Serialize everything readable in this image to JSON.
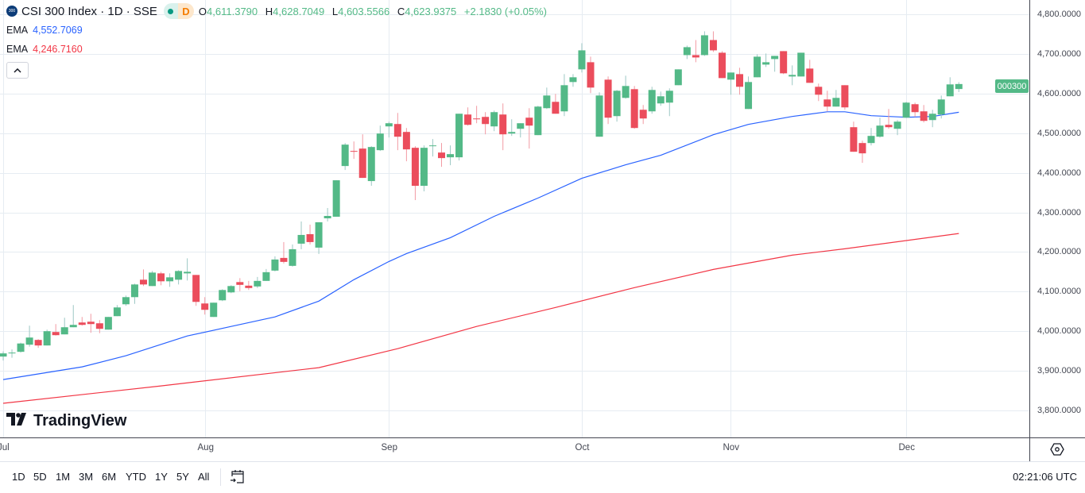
{
  "header": {
    "logo_text": "300",
    "title": "CSI 300 Index · 1D · SSE",
    "pill_letter": "D",
    "ohlc": {
      "o_label": "O",
      "o": "4,611.3790",
      "h_label": "H",
      "h": "4,628.7049",
      "l_label": "L",
      "l": "4,603.5566",
      "c_label": "C",
      "c": "4,623.9375",
      "change": "+2.1830 (+0.05%)"
    },
    "ema1": {
      "label": "EMA",
      "value": "4,552.7069",
      "color": "#2962ff"
    },
    "ema2": {
      "label": "EMA",
      "value": "4,246.7160",
      "color": "#f23645"
    },
    "collapse_icon": "chevron-up-icon"
  },
  "symbol_tag": "000300",
  "brand": "TradingView",
  "colors": {
    "up": "#53b987",
    "down": "#eb4d5c",
    "up_wick": "#9cc8c4",
    "down_wick": "#f29aa3",
    "grid": "#e6ecf2"
  },
  "bottom_bar": {
    "ranges": [
      "1D",
      "5D",
      "1M",
      "3M",
      "6M",
      "YTD",
      "1Y",
      "5Y",
      "All"
    ],
    "calendar_icon": "calendar-goto-icon",
    "clock": "02:21:06 UTC",
    "settings_icon": "settings-icon"
  },
  "chart_data": {
    "type": "candlestick",
    "ylim": [
      3770,
      4830
    ],
    "grid": true,
    "y_ticks": [
      "4,800.0000",
      "4,700.0000",
      "4,600.0000",
      "4,500.0000",
      "4,400.0000",
      "4,300.0000",
      "4,200.0000",
      "4,100.0000",
      "4,000.0000",
      "3,900.0000",
      "3,800.0000"
    ],
    "y_tick_values": [
      4800,
      4700,
      4600,
      4500,
      4400,
      4300,
      4200,
      4100,
      4000,
      3900,
      3800
    ],
    "x_ticks": [
      {
        "label": "Jul",
        "candle": 1
      },
      {
        "label": "Aug",
        "candle": 24
      },
      {
        "label": "Sep",
        "candle": 45
      },
      {
        "label": "Oct",
        "candle": 67
      },
      {
        "label": "Nov",
        "candle": 84
      },
      {
        "label": "Dec",
        "candle": 104
      }
    ],
    "ohlc": [
      [
        3936,
        3949,
        3926,
        3944
      ],
      [
        3945,
        3954,
        3933,
        3946
      ],
      [
        3948,
        3971,
        3946,
        3969
      ],
      [
        3966,
        4014,
        3961,
        3984
      ],
      [
        3978,
        3980,
        3958,
        3964
      ],
      [
        3964,
        4004,
        3964,
        4000
      ],
      [
        3998,
        4018,
        3989,
        3990
      ],
      [
        3992,
        4034,
        3992,
        4010
      ],
      [
        4010,
        4066,
        4010,
        4016
      ],
      [
        4022,
        4036,
        4014,
        4016
      ],
      [
        4024,
        4044,
        3996,
        4018
      ],
      [
        4020,
        4028,
        3995,
        4006
      ],
      [
        4004,
        4036,
        4004,
        4036
      ],
      [
        4038,
        4066,
        4038,
        4060
      ],
      [
        4068,
        4090,
        4064,
        4086
      ],
      [
        4086,
        4120,
        4069,
        4118
      ],
      [
        4130,
        4156,
        4114,
        4118
      ],
      [
        4114,
        4152,
        4114,
        4148
      ],
      [
        4146,
        4150,
        4116,
        4126
      ],
      [
        4126,
        4146,
        4112,
        4136
      ],
      [
        4130,
        4154,
        4118,
        4152
      ],
      [
        4146,
        4184,
        4128,
        4150
      ],
      [
        4142,
        4142,
        4064,
        4074
      ],
      [
        4070,
        4086,
        4042,
        4054
      ],
      [
        4036,
        4072,
        4036,
        4072
      ],
      [
        4078,
        4106,
        4076,
        4104
      ],
      [
        4098,
        4116,
        4096,
        4114
      ],
      [
        4124,
        4134,
        4101,
        4117
      ],
      [
        4115,
        4127,
        4104,
        4109
      ],
      [
        4113,
        4137,
        4109,
        4127
      ],
      [
        4127,
        4157,
        4127,
        4149
      ],
      [
        4153,
        4189,
        4151,
        4181
      ],
      [
        4185,
        4225,
        4171,
        4175
      ],
      [
        4165,
        4219,
        4163,
        4207
      ],
      [
        4221,
        4277,
        4207,
        4243
      ],
      [
        4245,
        4269,
        4219,
        4225
      ],
      [
        4211,
        4275,
        4195,
        4275
      ],
      [
        4285,
        4311,
        4277,
        4291
      ],
      [
        4289,
        4381,
        4289,
        4381
      ],
      [
        4417,
        4475,
        4407,
        4471
      ],
      [
        4455,
        4479,
        4435,
        4453
      ],
      [
        4461,
        4497,
        4387,
        4387
      ],
      [
        4379,
        4467,
        4367,
        4465
      ],
      [
        4457,
        4519,
        4455,
        4499
      ],
      [
        4517,
        4529,
        4489,
        4525
      ],
      [
        4523,
        4551,
        4457,
        4491
      ],
      [
        4503,
        4513,
        4429,
        4459
      ],
      [
        4463,
        4467,
        4331,
        4367
      ],
      [
        4367,
        4469,
        4353,
        4463
      ],
      [
        4467,
        4485,
        4441,
        4469
      ],
      [
        4451,
        4475,
        4415,
        4437
      ],
      [
        4439,
        4469,
        4419,
        4447
      ],
      [
        4439,
        4549,
        4431,
        4549
      ],
      [
        4547,
        4565,
        4519,
        4521
      ],
      [
        4537,
        4569,
        4525,
        4535
      ],
      [
        4541,
        4553,
        4497,
        4523
      ],
      [
        4517,
        4557,
        4505,
        4553
      ],
      [
        4547,
        4575,
        4457,
        4497
      ],
      [
        4499,
        4535,
        4493,
        4503
      ],
      [
        4511,
        4525,
        4489,
        4525
      ],
      [
        4539,
        4563,
        4461,
        4519
      ],
      [
        4495,
        4569,
        4495,
        4567
      ],
      [
        4563,
        4615,
        4561,
        4595
      ],
      [
        4579,
        4599,
        4549,
        4549
      ],
      [
        4555,
        4649,
        4543,
        4621
      ],
      [
        4629,
        4649,
        4617,
        4641
      ],
      [
        4661,
        4727,
        4653,
        4709
      ],
      [
        4679,
        4693,
        4601,
        4615
      ],
      [
        4491,
        4603,
        4491,
        4595
      ],
      [
        4635,
        4643,
        4523,
        4539
      ],
      [
        4543,
        4609,
        4529,
        4607
      ],
      [
        4589,
        4645,
        4587,
        4619
      ],
      [
        4611,
        4619,
        4511,
        4513
      ],
      [
        4559,
        4571,
        4523,
        4537
      ],
      [
        4555,
        4617,
        4549,
        4609
      ],
      [
        4575,
        4605,
        4569,
        4593
      ],
      [
        4577,
        4613,
        4543,
        4607
      ],
      [
        4621,
        4661,
        4621,
        4661
      ],
      [
        4697,
        4721,
        4687,
        4717
      ],
      [
        4697,
        4735,
        4679,
        4691
      ],
      [
        4697,
        4757,
        4695,
        4747
      ],
      [
        4735,
        4757,
        4705,
        4709
      ],
      [
        4703,
        4707,
        4639,
        4639
      ],
      [
        4635,
        4653,
        4597,
        4653
      ],
      [
        4649,
        4665,
        4597,
        4617
      ],
      [
        4561,
        4643,
        4561,
        4629
      ],
      [
        4641,
        4699,
        4641,
        4693
      ],
      [
        4673,
        4701,
        4667,
        4679
      ],
      [
        4687,
        4695,
        4655,
        4695
      ],
      [
        4707,
        4707,
        4649,
        4651
      ],
      [
        4643,
        4671,
        4621,
        4647
      ],
      [
        4643,
        4703,
        4643,
        4703
      ],
      [
        4663,
        4685,
        4627,
        4627
      ],
      [
        4617,
        4625,
        4581,
        4597
      ],
      [
        4585,
        4607,
        4555,
        4567
      ],
      [
        4567,
        4609,
        4567,
        4589
      ],
      [
        4621,
        4621,
        4559,
        4565
      ],
      [
        4515,
        4529,
        4453,
        4453
      ],
      [
        4475,
        4481,
        4425,
        4449
      ],
      [
        4475,
        4513,
        4469,
        4493
      ],
      [
        4491,
        4539,
        4489,
        4519
      ],
      [
        4521,
        4561,
        4511,
        4515
      ],
      [
        4511,
        4533,
        4495,
        4529
      ],
      [
        4539,
        4579,
        4539,
        4577
      ],
      [
        4573,
        4577,
        4541,
        4553
      ],
      [
        4555,
        4571,
        4527,
        4531
      ],
      [
        4533,
        4559,
        4515,
        4549
      ],
      [
        4547,
        4595,
        4537,
        4585
      ],
      [
        4593,
        4641,
        4593,
        4623
      ],
      [
        4611.379,
        4628.7049,
        4603.5566,
        4623.9375
      ]
    ],
    "ema_fast": [
      [
        1,
        3878
      ],
      [
        10,
        3910
      ],
      [
        15,
        3938
      ],
      [
        22,
        3988
      ],
      [
        27,
        4012
      ],
      [
        32,
        4036
      ],
      [
        37,
        4076
      ],
      [
        41,
        4130
      ],
      [
        45,
        4176
      ],
      [
        47,
        4196
      ],
      [
        52,
        4236
      ],
      [
        57,
        4290
      ],
      [
        62,
        4336
      ],
      [
        67,
        4386
      ],
      [
        72,
        4420
      ],
      [
        76,
        4444
      ],
      [
        82,
        4496
      ],
      [
        86,
        4522
      ],
      [
        91,
        4542
      ],
      [
        95,
        4554
      ],
      [
        97,
        4554
      ],
      [
        100,
        4544
      ],
      [
        104,
        4540
      ],
      [
        107,
        4542
      ],
      [
        110,
        4552.7069
      ]
    ],
    "ema_slow": [
      [
        1,
        3818
      ],
      [
        19,
        3862
      ],
      [
        37,
        3908
      ],
      [
        46,
        3956
      ],
      [
        55,
        4012
      ],
      [
        64,
        4060
      ],
      [
        73,
        4110
      ],
      [
        82,
        4156
      ],
      [
        91,
        4192
      ],
      [
        97,
        4208
      ],
      [
        110,
        4246.716
      ]
    ]
  }
}
